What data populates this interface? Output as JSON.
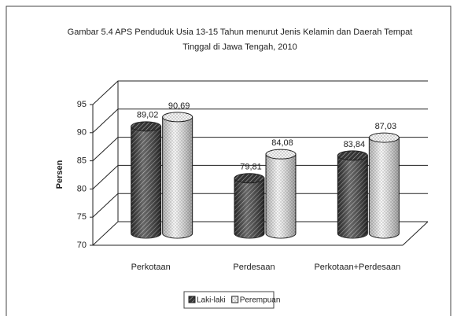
{
  "chart_data": {
    "type": "bar3d",
    "title": "Gambar 5.4 APS Penduduk Usia 13-15 Tahun menurut Jenis Kelamin dan Daerah Tempat Tinggal di Jawa Tengah, 2010",
    "ylabel": "Persen",
    "categories": [
      "Perkotaan",
      "Perdesaan",
      "Perkotaan+Perdesaan"
    ],
    "series": [
      {
        "name": "Laki-laki",
        "color": "#333333",
        "values": [
          89.02,
          79.81,
          83.84
        ],
        "value_labels": [
          "89,02",
          "79,81",
          "83,84"
        ]
      },
      {
        "name": "Perempuan",
        "color": "#f4f4f4",
        "values": [
          90.69,
          84.08,
          87.03
        ],
        "value_labels": [
          "90,69",
          "84,08",
          "87,03"
        ]
      }
    ],
    "ylim": [
      70,
      95
    ],
    "yticks": [
      70,
      75,
      80,
      85,
      90,
      95
    ],
    "grid": true,
    "legend": "bottom"
  }
}
